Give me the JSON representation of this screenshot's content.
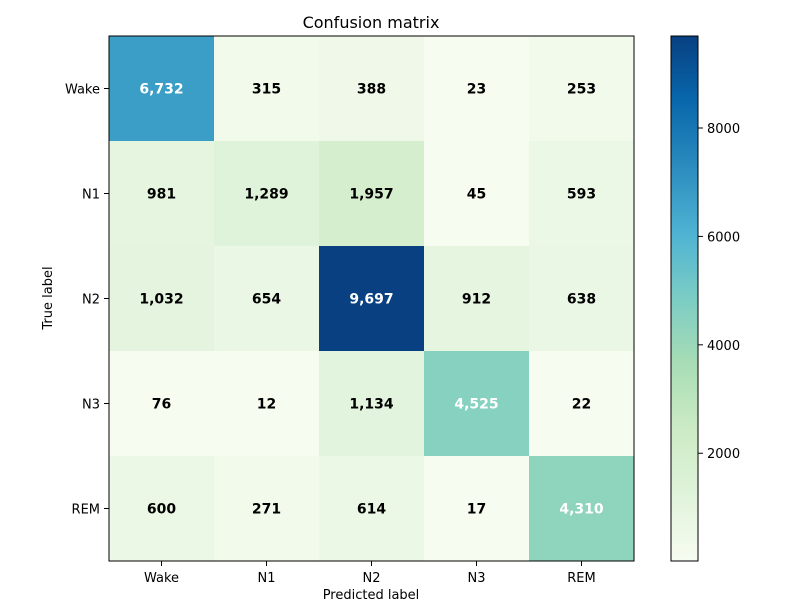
{
  "chart_data": {
    "type": "heatmap",
    "title": "Confusion matrix",
    "xlabel": "Predicted label",
    "ylabel": "True label",
    "x_categories": [
      "Wake",
      "N1",
      "N2",
      "N3",
      "REM"
    ],
    "y_categories": [
      "Wake",
      "N1",
      "N2",
      "N3",
      "REM"
    ],
    "values": [
      [
        6732,
        315,
        388,
        23,
        253
      ],
      [
        981,
        1289,
        1957,
        45,
        593
      ],
      [
        1032,
        654,
        9697,
        912,
        638
      ],
      [
        76,
        12,
        1134,
        4525,
        22
      ],
      [
        600,
        271,
        614,
        17,
        4310
      ]
    ],
    "cell_labels": [
      [
        "6,732",
        "315",
        "388",
        "23",
        "253"
      ],
      [
        "981",
        "1,289",
        "1,957",
        "45",
        "593"
      ],
      [
        "1,032",
        "654",
        "9,697",
        "912",
        "638"
      ],
      [
        "76",
        "12",
        "1,134",
        "4,525",
        "22"
      ],
      [
        "600",
        "271",
        "614",
        "17",
        "4,310"
      ]
    ],
    "colormap": "GnBu",
    "colorbar": {
      "range": [
        12,
        9697
      ],
      "ticks": [
        2000,
        4000,
        6000,
        8000
      ],
      "tick_labels": [
        "2000",
        "4000",
        "6000",
        "8000"
      ]
    },
    "text_colors": {
      "light": "#ffffff",
      "dark": "#000000"
    }
  }
}
